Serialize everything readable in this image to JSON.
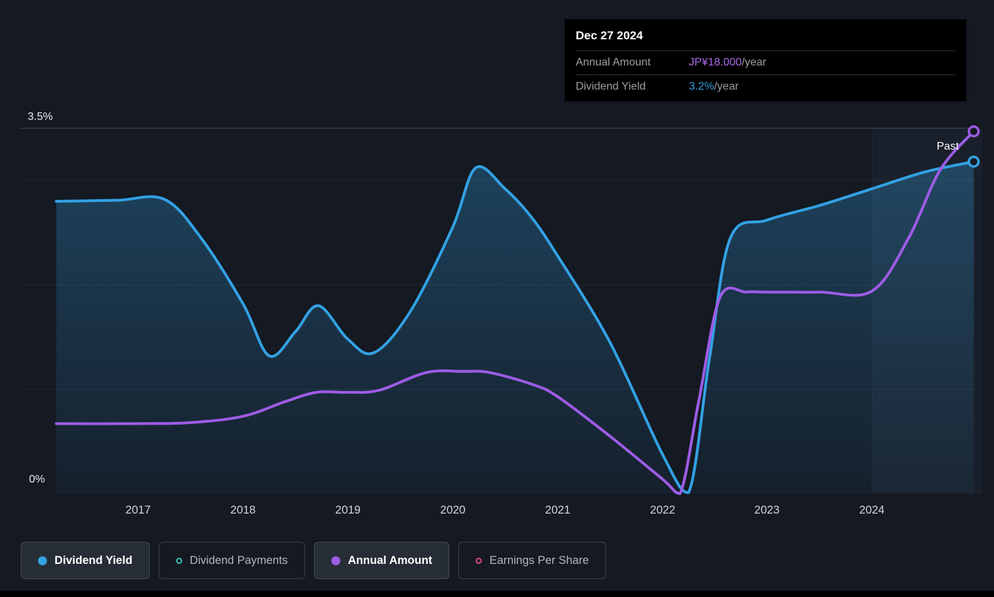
{
  "labels": {
    "past": "Past"
  },
  "tooltip": {
    "date": "Dec 27 2024",
    "rows": [
      {
        "label": "Annual Amount",
        "value": "JP¥18.000",
        "suffix": "/year",
        "color": "#aa6ae8"
      },
      {
        "label": "Dividend Yield",
        "value": "3.2%",
        "suffix": "/year",
        "color": "#33a1e4"
      }
    ]
  },
  "legend": [
    {
      "label": "Dividend Yield",
      "marker": "filled",
      "color": "#33a1e4",
      "active": true
    },
    {
      "label": "Dividend Payments",
      "marker": "open",
      "color": "#39c1ad",
      "active": false
    },
    {
      "label": "Annual Amount",
      "marker": "filled",
      "color": "#9d5ce5",
      "active": true
    },
    {
      "label": "Earnings Per Share",
      "marker": "open",
      "color": "#e0487d",
      "active": false
    }
  ],
  "chart_data": {
    "type": "line",
    "x_axis": {
      "min": 2016.2,
      "max": 2025.05,
      "ticks": [
        2017,
        2018,
        2019,
        2020,
        2021,
        2022,
        2023,
        2024
      ]
    },
    "y_axis": {
      "min": 0,
      "max": 3.5,
      "unit": "%",
      "top_label": "3.5%",
      "bottom_label": "0%",
      "gridlines": [
        {
          "value": 3.5,
          "strong": true
        },
        {
          "value": 3
        },
        {
          "value": 2
        },
        {
          "value": 1
        }
      ]
    },
    "highlight_band": {
      "from": 2024,
      "to": 2025.05
    },
    "series": [
      {
        "name": "Dividend Yield",
        "color": "#33a1e4",
        "area": true,
        "end_marker": true,
        "unit": "%",
        "points": [
          [
            2016.22,
            2.8
          ],
          [
            2016.8,
            2.81
          ],
          [
            2017.25,
            2.82
          ],
          [
            2017.6,
            2.45
          ],
          [
            2018.0,
            1.82
          ],
          [
            2018.25,
            1.32
          ],
          [
            2018.5,
            1.55
          ],
          [
            2018.72,
            1.8
          ],
          [
            2019.0,
            1.48
          ],
          [
            2019.25,
            1.35
          ],
          [
            2019.6,
            1.75
          ],
          [
            2020.0,
            2.55
          ],
          [
            2020.22,
            3.12
          ],
          [
            2020.5,
            2.92
          ],
          [
            2020.75,
            2.65
          ],
          [
            2021.0,
            2.28
          ],
          [
            2021.5,
            1.45
          ],
          [
            2022.0,
            0.38
          ],
          [
            2022.25,
            0.01
          ],
          [
            2022.45,
            1.3
          ],
          [
            2022.65,
            2.45
          ],
          [
            2023.0,
            2.62
          ],
          [
            2023.5,
            2.76
          ],
          [
            2024.0,
            2.92
          ],
          [
            2024.5,
            3.08
          ],
          [
            2024.97,
            3.18
          ]
        ],
        "current_value": "3.2%/year"
      },
      {
        "name": "Annual Amount",
        "color": "#9d5ce5",
        "area": false,
        "end_marker": true,
        "unit": "display-scale (0-3.5)",
        "points": [
          [
            2016.22,
            0.67
          ],
          [
            2017.0,
            0.67
          ],
          [
            2017.5,
            0.68
          ],
          [
            2018.0,
            0.74
          ],
          [
            2018.4,
            0.88
          ],
          [
            2018.7,
            0.97
          ],
          [
            2019.0,
            0.97
          ],
          [
            2019.3,
            0.99
          ],
          [
            2019.75,
            1.16
          ],
          [
            2020.1,
            1.17
          ],
          [
            2020.35,
            1.16
          ],
          [
            2020.75,
            1.05
          ],
          [
            2021.0,
            0.93
          ],
          [
            2021.5,
            0.55
          ],
          [
            2022.0,
            0.14
          ],
          [
            2022.17,
            0.0
          ],
          [
            2022.35,
            0.9
          ],
          [
            2022.55,
            1.88
          ],
          [
            2022.8,
            1.93
          ],
          [
            2023.0,
            1.93
          ],
          [
            2023.5,
            1.93
          ],
          [
            2024.0,
            1.94
          ],
          [
            2024.35,
            2.45
          ],
          [
            2024.65,
            3.1
          ],
          [
            2024.97,
            3.47
          ]
        ],
        "current_value": "JP¥18.000/year"
      }
    ]
  }
}
